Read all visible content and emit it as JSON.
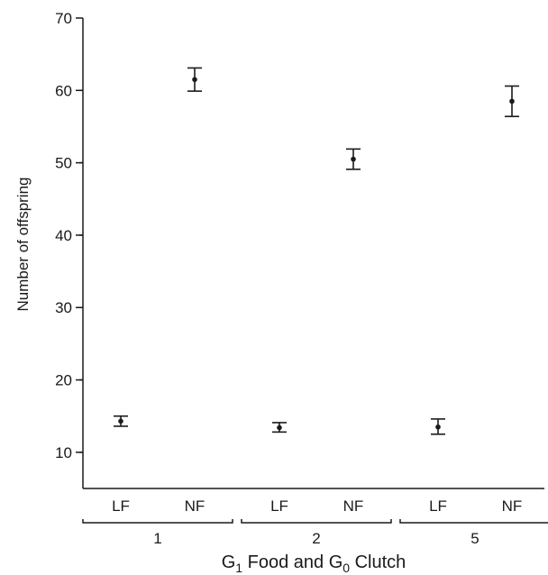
{
  "chart_data": {
    "type": "scatter",
    "title": "",
    "ylabel": "Number of offspring",
    "xlabel_parts": {
      "g1": "G",
      "g1_sub": "1",
      "food_and": " Food and ",
      "g0": "G",
      "g0_sub": "0",
      "clutch": " Clutch"
    },
    "ylim": [
      5,
      70
    ],
    "yticks": [
      10,
      20,
      30,
      40,
      50,
      60,
      70
    ],
    "categories": [
      "LF",
      "NF",
      "LF",
      "NF",
      "LF",
      "NF"
    ],
    "groups": [
      {
        "label": "1",
        "members": [
          0,
          1
        ]
      },
      {
        "label": "2",
        "members": [
          2,
          3
        ]
      },
      {
        "label": "5",
        "members": [
          4,
          5
        ]
      }
    ],
    "values": [
      14.3,
      61.5,
      13.4,
      50.5,
      13.5,
      58.5
    ],
    "err_low": [
      13.6,
      59.9,
      12.8,
      49.1,
      12.5,
      56.4
    ],
    "err_high": [
      15.0,
      63.1,
      14.1,
      51.9,
      14.6,
      60.6
    ],
    "grid": false,
    "legend": "none"
  }
}
